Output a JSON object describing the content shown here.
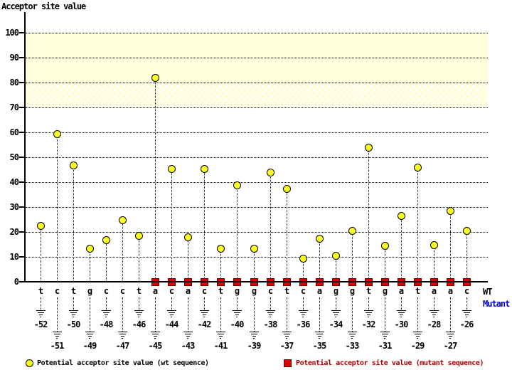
{
  "title": "Acceptor site value",
  "row_labels": {
    "wt": "WT",
    "mutant": "Mutant"
  },
  "legend": {
    "items": [
      {
        "marker": "circle",
        "color": "#ffff22",
        "label": "Potential acceptor site value (wt sequence)"
      },
      {
        "marker": "square",
        "color": "#dd0000",
        "label": "Potential acceptor site value (mutant sequence)"
      }
    ]
  },
  "colors": {
    "wt_marker": "#ffff22",
    "mutant_marker": "#dd0000",
    "band_solid": "#ffffdc",
    "mutant_label": "#0000cc",
    "legend_mutant_text": "#aa0000"
  },
  "chart_data": {
    "type": "scatter",
    "title": "Acceptor site value",
    "ylabel": "Acceptor site value",
    "ylim": [
      0,
      100
    ],
    "yticks": [
      0,
      10,
      20,
      30,
      40,
      50,
      60,
      70,
      80,
      90,
      100
    ],
    "grid": "dotted horizontal",
    "bands": [
      {
        "from": 80,
        "to": 100,
        "style": "solid"
      },
      {
        "from": 70,
        "to": 80,
        "style": "hatch"
      }
    ],
    "positions": [
      -52,
      -51,
      -50,
      -49,
      -48,
      -47,
      -46,
      -45,
      -44,
      -43,
      -42,
      -41,
      -40,
      -39,
      -38,
      -37,
      -36,
      -35,
      -34,
      -33,
      -32,
      -31,
      -30,
      -29,
      -28,
      -27,
      -26
    ],
    "sequence_wt": [
      "t",
      "c",
      "t",
      "g",
      "c",
      "c",
      "t",
      "a",
      "c",
      "a",
      "c",
      "t",
      "g",
      "g",
      "c",
      "t",
      "c",
      "a",
      "g",
      "g",
      "t",
      "g",
      "a",
      "t",
      "a",
      "a",
      "c"
    ],
    "series": [
      {
        "name": "Potential acceptor site value (wt sequence)",
        "marker": "circle",
        "color": "#ffff22",
        "values": [
          22.5,
          59.5,
          47,
          13.5,
          17,
          25,
          18.5,
          82,
          45.5,
          18,
          45.5,
          13.5,
          39,
          13.5,
          44,
          37.5,
          9.5,
          17.5,
          10.5,
          20.5,
          54,
          14.5,
          26.5,
          46,
          15,
          28.5,
          20.5
        ]
      },
      {
        "name": "Potential acceptor site value (mutant sequence)",
        "marker": "square",
        "color": "#dd0000",
        "values": [
          null,
          null,
          null,
          null,
          null,
          null,
          null,
          0,
          0,
          0,
          0,
          0,
          0,
          0,
          0,
          0,
          0,
          0,
          0,
          0,
          0,
          0,
          0,
          0,
          0,
          0,
          0
        ]
      }
    ]
  }
}
